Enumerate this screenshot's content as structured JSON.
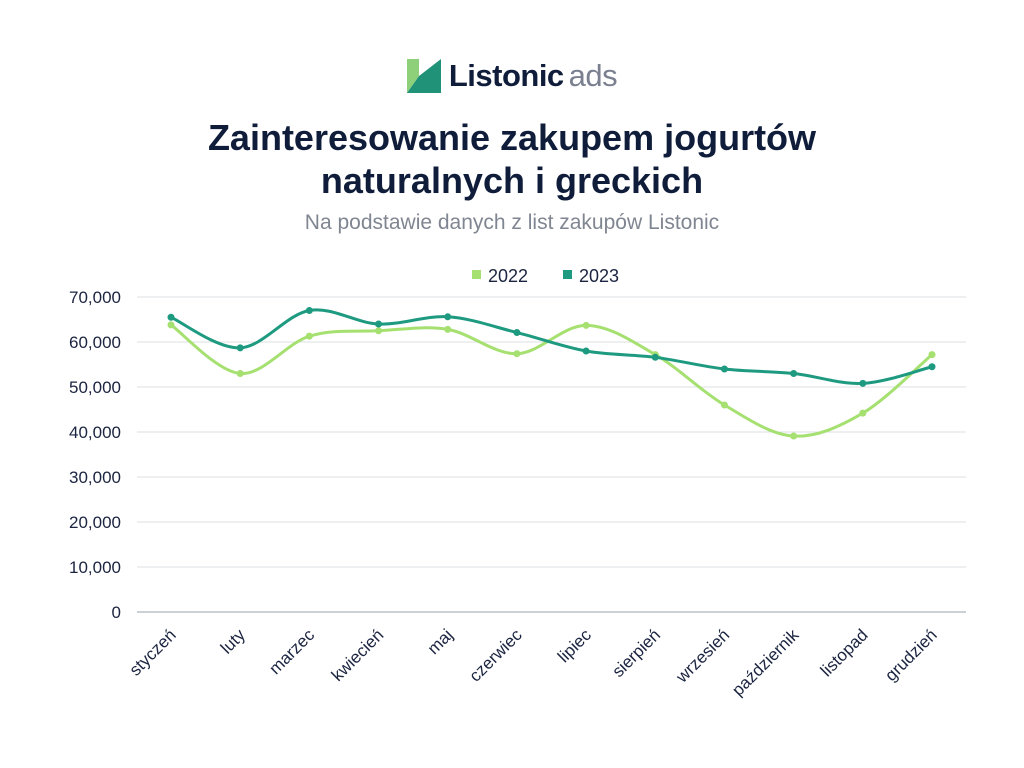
{
  "brand": {
    "name": "Listonic",
    "suffix": "ads",
    "colors": {
      "light": "#8ed07a",
      "dark": "#1f9277",
      "text": "#0f1d3a"
    }
  },
  "title_line1": "Zainteresowanie zakupem jogurtów",
  "title_line2": "naturalnych i greckich",
  "subtitle": "Na podstawie danych z list zakupów Listonic",
  "chart_data": {
    "type": "line",
    "categories": [
      "styczeń",
      "luty",
      "marzec",
      "kwiecień",
      "maj",
      "czerwiec",
      "lipiec",
      "sierpień",
      "wrzesień",
      "październik",
      "listopad",
      "grudzień"
    ],
    "series": [
      {
        "name": "2022",
        "color": "#a5e070",
        "values": [
          63800,
          53000,
          61300,
          62500,
          62800,
          57400,
          63700,
          57200,
          46000,
          39100,
          44200,
          57200
        ]
      },
      {
        "name": "2023",
        "color": "#1e9a80",
        "values": [
          65500,
          58700,
          67000,
          64000,
          65600,
          62100,
          58000,
          56600,
          54000,
          53000,
          50800,
          54500
        ]
      }
    ],
    "ylim": [
      0,
      70000
    ],
    "yticks": [
      0,
      10000,
      20000,
      30000,
      40000,
      50000,
      60000,
      70000
    ],
    "ytick_labels": [
      "0",
      "10,000",
      "20,000",
      "30,000",
      "40,000",
      "50,000",
      "60,000",
      "70,000"
    ],
    "grid": true,
    "legend_position": "top-center",
    "smooth": true
  }
}
